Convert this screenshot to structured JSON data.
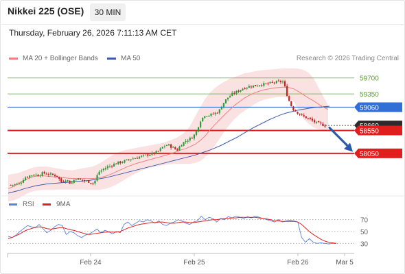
{
  "header": {
    "title": "Nikkei 225 (OSE)",
    "interval": "30 MIN",
    "datetime": "Thursday, February 26, 2026 7:11:13 AM CET"
  },
  "legend": {
    "ma20_label": "MA 20 + Bollinger Bands",
    "ma50_label": "MA 50",
    "credit": "Research © 2026 Trading Central",
    "rsi_label": "RSI",
    "rsi_ma_label": "9MA"
  },
  "colors": {
    "ma20": "#f08080",
    "ma50": "#3b5ba9",
    "bollinger_fill": "#fbe0e0",
    "green_level": "#5aa02c",
    "blue_level": "#2f6fd6",
    "red_level": "#e01e1e",
    "rsi": "#5b7fd9",
    "rsi_ma": "#e01e1e",
    "up_candle": "#2c9a3a",
    "down_candle": "#c81e1e"
  },
  "chart_data": [
    {
      "type": "candlestick",
      "timeframe": "30 MIN",
      "ylim": [
        57180,
        59965
      ],
      "levels": [
        {
          "value": 59700,
          "label": "59700",
          "kind": "resistance",
          "color": "green"
        },
        {
          "value": 59350,
          "label": "59350",
          "kind": "resistance",
          "color": "green"
        },
        {
          "value": 59060,
          "label": "59060",
          "kind": "pivot",
          "color": "blue"
        },
        {
          "value": 58550,
          "label": "58550",
          "kind": "support",
          "color": "red"
        },
        {
          "value": 58050,
          "label": "58050",
          "kind": "support",
          "color": "red"
        }
      ],
      "current_price_label": "58660",
      "x_labels": [
        "Feb 24",
        "Feb 25",
        "Feb 26",
        "Mar 5"
      ],
      "close_path": [
        57360,
        57370,
        57390,
        57520,
        57560,
        57590,
        57570,
        57620,
        57600,
        57580,
        57560,
        57420,
        57490,
        57380,
        57510,
        57470,
        57450,
        57430,
        57390,
        57640,
        57700,
        57760,
        57800,
        57840,
        57860,
        57890,
        57930,
        57950,
        57980,
        58000,
        58030,
        58050,
        58100,
        58200,
        58240,
        58180,
        58120,
        58260,
        58330,
        58380,
        58480,
        58760,
        58890,
        58880,
        58920,
        58960,
        59150,
        59270,
        59350,
        59400,
        59460,
        59500,
        59520,
        59530,
        59560,
        59560,
        59580,
        59600,
        59610,
        59620,
        59250,
        59020,
        58950,
        58870,
        58830,
        58780,
        58720,
        58690,
        58660
      ],
      "ma20": [
        57280,
        57320,
        57380,
        57440,
        57500,
        57540,
        57560,
        57560,
        57550,
        57540,
        57530,
        57520,
        57510,
        57500,
        57500,
        57500,
        57500,
        57500,
        57510,
        57530,
        57560,
        57600,
        57650,
        57700,
        57750,
        57790,
        57830,
        57860,
        57890,
        57920,
        57950,
        57980,
        58010,
        58040,
        58080,
        58120,
        58150,
        58200,
        58250,
        58330,
        58430,
        58560,
        58680,
        58790,
        58900,
        59000,
        59100,
        59180,
        59260,
        59320,
        59370,
        59410,
        59440,
        59460,
        59480,
        59490,
        59500,
        59490,
        59460,
        59400,
        59330,
        59260,
        59200,
        59130,
        59060,
        59010
      ],
      "ma50": [
        57180,
        57210,
        57240,
        57280,
        57310,
        57340,
        57360,
        57380,
        57390,
        57400,
        57410,
        57420,
        57430,
        57440,
        57450,
        57460,
        57480,
        57500,
        57520,
        57550,
        57580,
        57610,
        57640,
        57670,
        57700,
        57730,
        57760,
        57790,
        57820,
        57850,
        57880,
        57910,
        57940,
        57970,
        58000,
        58040,
        58080,
        58120,
        58170,
        58220,
        58280,
        58340,
        58400,
        58470,
        58540,
        58610,
        58670,
        58730,
        58790,
        58840,
        58890,
        58930,
        58960,
        58990,
        59010,
        59030,
        59050,
        59060,
        59070,
        59080
      ],
      "bollinger_upper": [
        57580,
        57600,
        57620,
        57660,
        57700,
        57740,
        57760,
        57760,
        57760,
        57740,
        57720,
        57700,
        57690,
        57680,
        57700,
        57720,
        57740,
        57760,
        57800,
        57860,
        57930,
        58000,
        58060,
        58100,
        58130,
        58150,
        58170,
        58190,
        58210,
        58230,
        58250,
        58270,
        58300,
        58340,
        58380,
        58440,
        58520,
        58660,
        58860,
        59060,
        59240,
        59380,
        59480,
        59560,
        59620,
        59680,
        59720,
        59760,
        59800,
        59820,
        59840,
        59860,
        59870,
        59880,
        59890,
        59900,
        59910,
        59910,
        59910,
        59900,
        59870,
        59820,
        59700,
        59500,
        59300,
        59100
      ],
      "bollinger_lower": [
        57000,
        57020,
        57060,
        57120,
        57180,
        57220,
        57240,
        57250,
        57250,
        57250,
        57260,
        57260,
        57260,
        57260,
        57260,
        57260,
        57250,
        57250,
        57250,
        57260,
        57280,
        57320,
        57370,
        57430,
        57500,
        57560,
        57620,
        57670,
        57710,
        57740,
        57760,
        57780,
        57800,
        57810,
        57820,
        57820,
        57820,
        57820,
        57840,
        57880,
        57960,
        58080,
        58220,
        58380,
        58540,
        58680,
        58800,
        58900,
        58980,
        59050,
        59120,
        59180,
        59220,
        59250,
        59270,
        59280,
        59280,
        59260,
        59180,
        59000,
        58800,
        58700,
        58620,
        58580,
        58560,
        58550
      ],
      "forecast_arrow": {
        "from": 58610,
        "to": 58130,
        "direction": "down"
      }
    },
    {
      "type": "line",
      "title": "RSI",
      "ylim": [
        20,
        80
      ],
      "y_ticks": [
        70,
        50,
        30
      ],
      "y_tick_labels": [
        "70",
        "50",
        "30"
      ],
      "series": [
        {
          "name": "RSI",
          "values": [
            42,
            40,
            44,
            50,
            55,
            60,
            58,
            56,
            62,
            55,
            48,
            52,
            58,
            62,
            60,
            45,
            50,
            48,
            43,
            40,
            44,
            46,
            50,
            54,
            48,
            52,
            50,
            46,
            50,
            48,
            62,
            66,
            60,
            64,
            68,
            66,
            70,
            68,
            64,
            68,
            62,
            60,
            64,
            66,
            70,
            68,
            64,
            62,
            66,
            68,
            76,
            70,
            74,
            72,
            66,
            72,
            70,
            75,
            73,
            76,
            74,
            72,
            75,
            73,
            76,
            74,
            72,
            70,
            68,
            66,
            70,
            66,
            68,
            69,
            68,
            66,
            40,
            32,
            38,
            32,
            30,
            31,
            30,
            29,
            30,
            30
          ]
        },
        {
          "name": "9MA",
          "values": [
            38,
            40,
            43,
            46,
            50,
            53,
            55,
            57,
            58,
            57,
            55,
            54,
            55,
            56,
            57,
            55,
            53,
            52,
            50,
            48,
            46,
            45,
            46,
            47,
            48,
            49,
            49,
            49,
            49,
            50,
            53,
            56,
            58,
            60,
            62,
            63,
            64,
            65,
            65,
            66,
            66,
            65,
            64,
            64,
            65,
            66,
            66,
            65,
            65,
            66,
            67,
            68,
            69,
            70,
            70,
            71,
            72,
            72,
            73,
            73,
            74,
            74,
            74,
            74,
            74,
            73,
            72,
            71,
            70,
            68,
            68,
            67,
            67,
            67,
            67,
            66,
            62,
            56,
            50,
            45,
            41,
            37,
            34,
            32,
            31,
            30
          ]
        }
      ],
      "x_labels": [
        "Feb 24",
        "Feb 25",
        "Feb 26",
        "Mar 5"
      ]
    }
  ]
}
